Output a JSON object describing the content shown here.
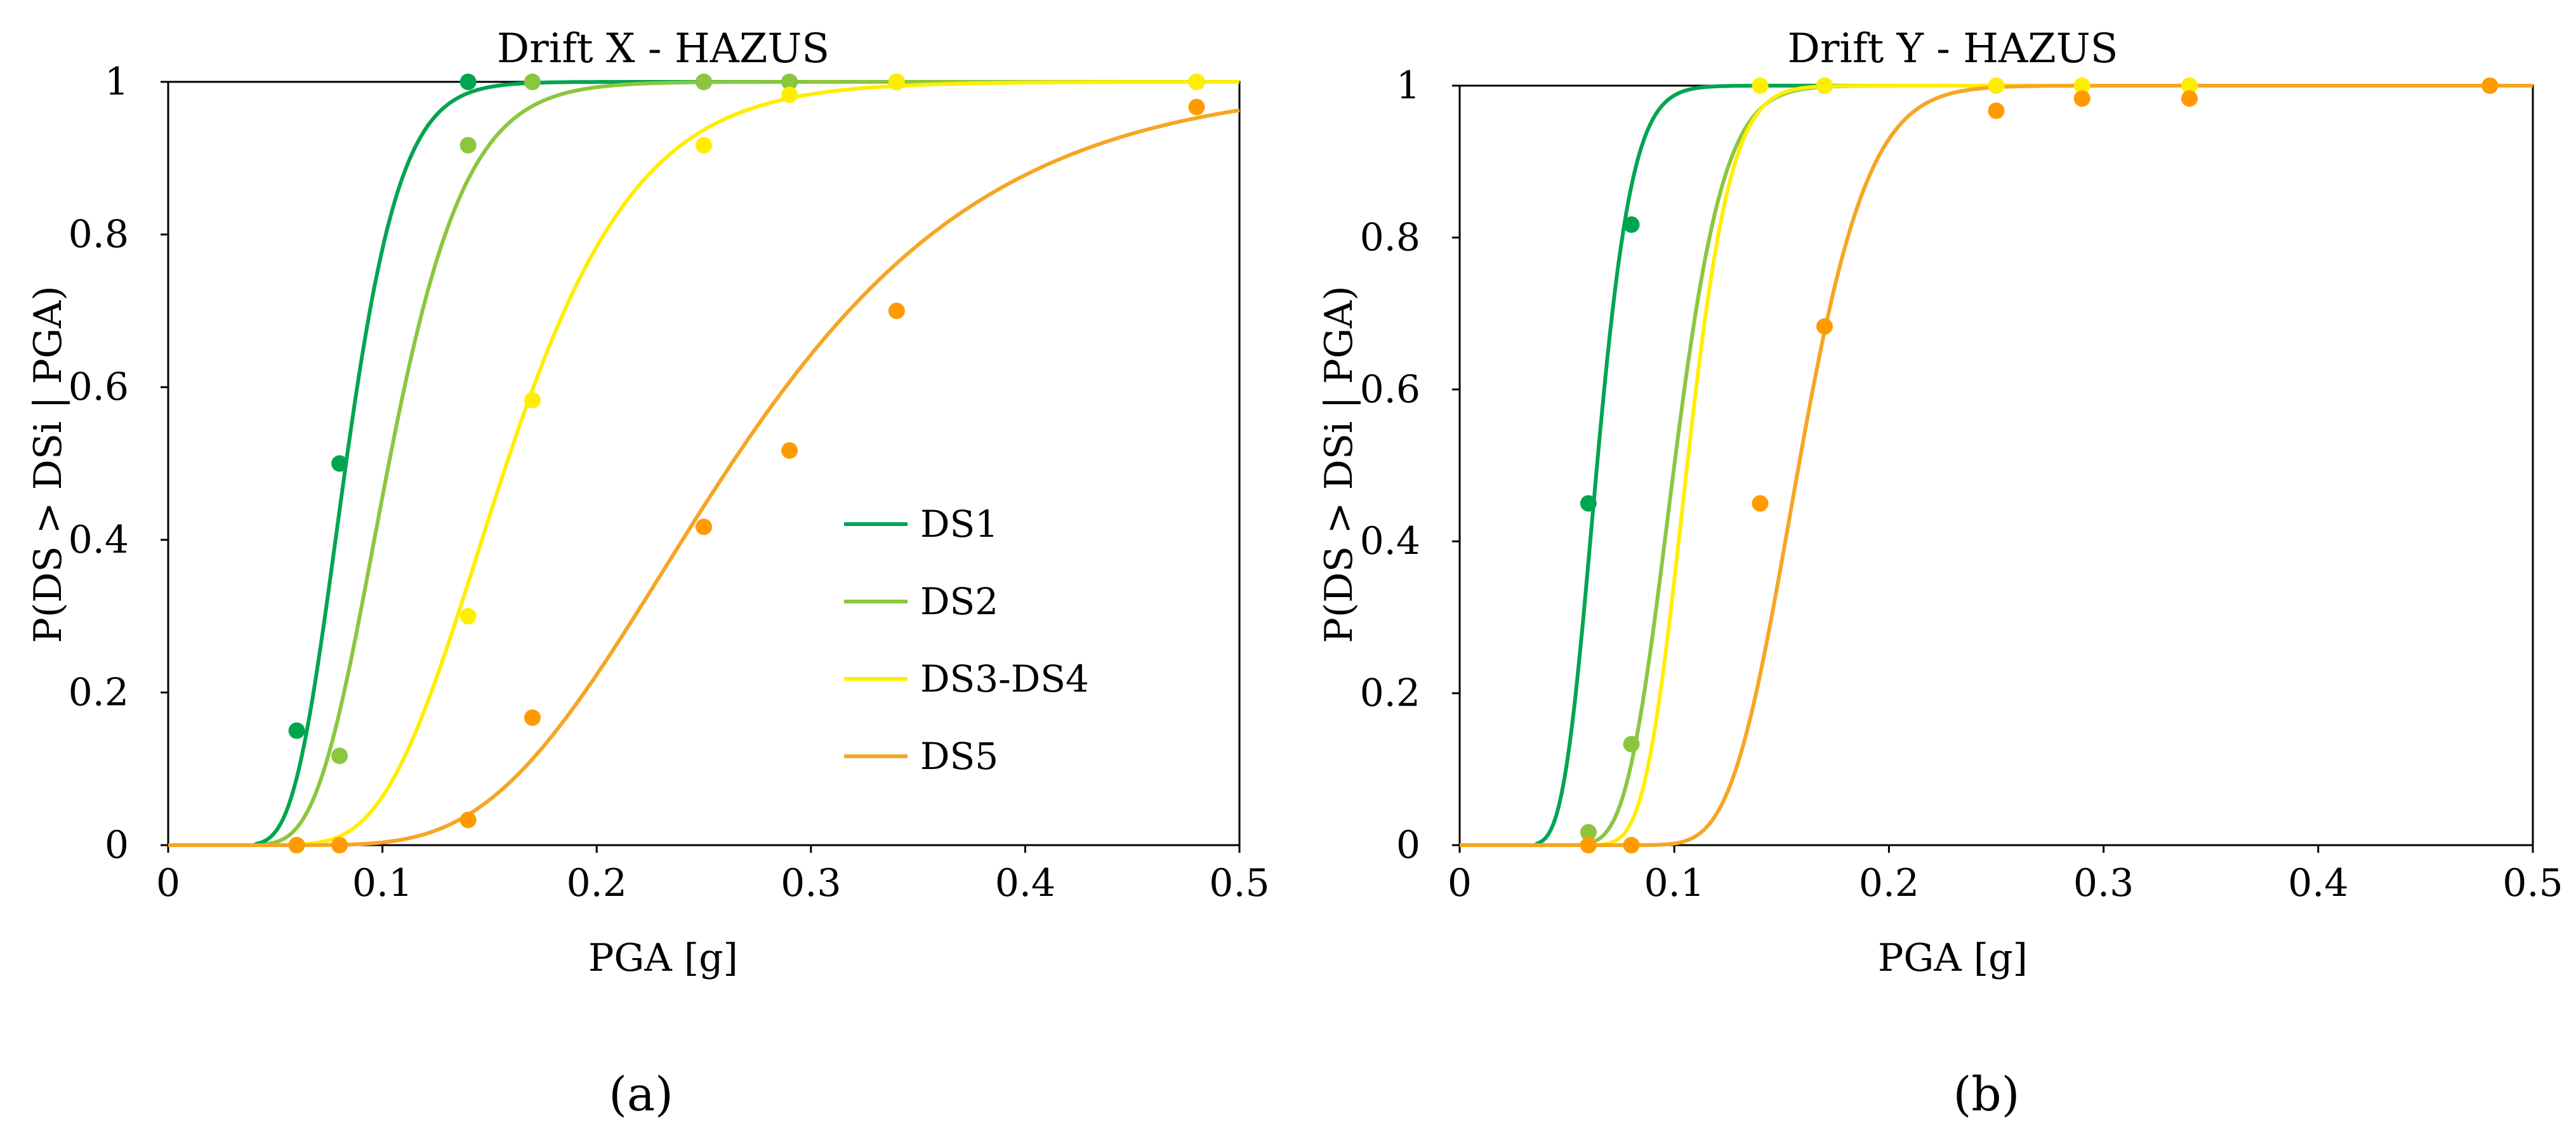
{
  "chart_data": [
    {
      "type": "line",
      "panel_label": "(a)",
      "title": "Drift X - HAZUS",
      "xlabel": "PGA [g]",
      "ylabel": "P(DS > DSi | PGA)",
      "xlim": [
        0,
        0.5
      ],
      "ylim": [
        0,
        1
      ],
      "xticks": [
        0,
        0.1,
        0.2,
        0.3,
        0.4,
        0.5
      ],
      "yticks": [
        0,
        0.2,
        0.4,
        0.6,
        0.8,
        1
      ],
      "xtick_labels": [
        "0",
        "0.1",
        "0.2",
        "0.3",
        "0.4",
        "0.5"
      ],
      "ytick_labels": [
        "0",
        "0.2",
        "0.4",
        "0.6",
        "0.8",
        "1"
      ],
      "legend": {
        "position": "center",
        "entries": [
          "DS1",
          "DS2",
          "DS3-DS4",
          "DS5"
        ]
      },
      "series": [
        {
          "name": "DS1",
          "color": "#00a550",
          "fit": {
            "median": 0.083,
            "beta": 0.24,
            "onset": 0.04
          },
          "points": [
            [
              0.06,
              0.15
            ],
            [
              0.08,
              0.5
            ],
            [
              0.14,
              1.0
            ],
            [
              0.17,
              1.0
            ],
            [
              0.25,
              1.0
            ],
            [
              0.29,
              1.0
            ],
            [
              0.34,
              1.0
            ],
            [
              0.48,
              1.0
            ]
          ]
        },
        {
          "name": "DS2",
          "color": "#8cc63f",
          "fit": {
            "median": 0.103,
            "beta": 0.27,
            "onset": 0.045
          },
          "points": [
            [
              0.06,
              0.0
            ],
            [
              0.08,
              0.117
            ],
            [
              0.14,
              0.917
            ],
            [
              0.17,
              1.0
            ],
            [
              0.25,
              1.0
            ],
            [
              0.29,
              1.0
            ],
            [
              0.34,
              1.0
            ],
            [
              0.48,
              1.0
            ]
          ]
        },
        {
          "name": "DS3-DS4",
          "color": "#ffee00",
          "fit": {
            "median": 0.158,
            "beta": 0.3,
            "onset": 0.05
          },
          "points": [
            [
              0.06,
              0.0
            ],
            [
              0.08,
              0.0
            ],
            [
              0.14,
              0.3
            ],
            [
              0.17,
              0.583
            ],
            [
              0.25,
              0.917
            ],
            [
              0.29,
              0.983
            ],
            [
              0.34,
              1.0
            ],
            [
              0.48,
              1.0
            ]
          ]
        },
        {
          "name": "DS5",
          "color": "#f5a623",
          "marker_color": "#ff9b00",
          "fit": {
            "median": 0.263,
            "beta": 0.36,
            "onset": 0.06
          },
          "points": [
            [
              0.06,
              0.0
            ],
            [
              0.08,
              0.0
            ],
            [
              0.14,
              0.033
            ],
            [
              0.17,
              0.167
            ],
            [
              0.25,
              0.417
            ],
            [
              0.29,
              0.517
            ],
            [
              0.34,
              0.7
            ],
            [
              0.48,
              0.967
            ]
          ]
        }
      ]
    },
    {
      "type": "line",
      "panel_label": "(b)",
      "title": "Drift Y - HAZUS",
      "xlabel": "PGA [g]",
      "ylabel": "P(DS > DSi | PGA)",
      "xlim": [
        0,
        0.5
      ],
      "ylim": [
        0,
        1
      ],
      "xticks": [
        0,
        0.1,
        0.2,
        0.3,
        0.4,
        0.5
      ],
      "yticks": [
        0,
        0.2,
        0.4,
        0.6,
        0.8,
        1
      ],
      "xtick_labels": [
        "0",
        "0.1",
        "0.2",
        "0.3",
        "0.4",
        "0.5"
      ],
      "ytick_labels": [
        "0",
        "0.2",
        "0.4",
        "0.6",
        "0.8",
        "1"
      ],
      "series": [
        {
          "name": "DS1",
          "color": "#00a550",
          "fit": {
            "median": 0.064,
            "beta": 0.2,
            "onset": 0.035
          },
          "points": [
            [
              0.06,
              0.45
            ],
            [
              0.08,
              0.817
            ]
          ]
        },
        {
          "name": "DS2",
          "color": "#8cc63f",
          "fit": {
            "median": 0.1,
            "beta": 0.18,
            "onset": 0.055
          },
          "points": [
            [
              0.06,
              0.017
            ],
            [
              0.08,
              0.133
            ],
            [
              0.17,
              1.0
            ]
          ]
        },
        {
          "name": "DS3-DS4",
          "color": "#ffee00",
          "fit": {
            "median": 0.106,
            "beta": 0.15,
            "onset": 0.065
          },
          "points": [
            [
              0.06,
              0.0
            ],
            [
              0.08,
              0.0
            ],
            [
              0.14,
              1.0
            ],
            [
              0.17,
              1.0
            ],
            [
              0.25,
              1.0
            ],
            [
              0.29,
              1.0
            ],
            [
              0.34,
              1.0
            ]
          ]
        },
        {
          "name": "DS5",
          "color": "#f5a623",
          "marker_color": "#ff9b00",
          "fit": {
            "median": 0.158,
            "beta": 0.16,
            "onset": 0.07
          },
          "points": [
            [
              0.06,
              0.0
            ],
            [
              0.08,
              0.0
            ],
            [
              0.14,
              0.45
            ],
            [
              0.17,
              0.683
            ],
            [
              0.25,
              0.967
            ],
            [
              0.29,
              0.983
            ],
            [
              0.34,
              0.983
            ],
            [
              0.48,
              1.0
            ]
          ]
        }
      ]
    }
  ]
}
